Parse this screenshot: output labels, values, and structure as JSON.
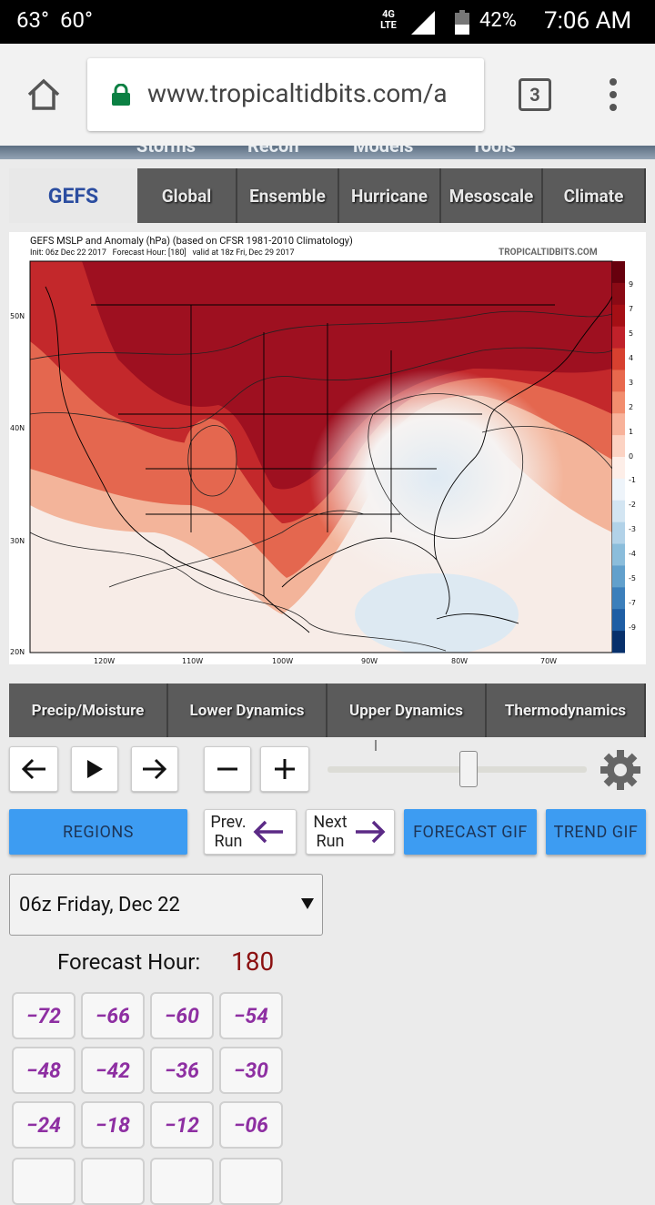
{
  "status_bar": {
    "temps": [
      "63°",
      "60°"
    ],
    "network": "4G LTE",
    "battery": "42%",
    "time": "7:06 AM"
  },
  "browser": {
    "url": "www.tropicaltidbits.com/a",
    "tab_count": "3"
  },
  "site_nav": [
    "Storms",
    "Recon",
    "Models",
    "Tools"
  ],
  "model_tabs": {
    "active": "GEFS",
    "tabs": [
      "Global",
      "Ensemble",
      "Hurricane",
      "Mesoscale",
      "Climate"
    ]
  },
  "map": {
    "title": "GEFS MSLP and Anomaly (hPa) (based on CFSR 1981-2010 Climatology)",
    "subtitle": "Init: 06z Dec 22 2017   Forecast Hour: [180]   valid at 18z Fri, Dec 29 2017",
    "watermark": "TROPICALTIDBITS.COM",
    "lat_labels": [
      "50N",
      "40N",
      "30N",
      "20N"
    ],
    "lon_labels": [
      "120W",
      "110W",
      "100W",
      "90W",
      "80W",
      "70W"
    ],
    "colorbar_labels": [
      "9",
      "7",
      "5",
      "4",
      "3",
      "2",
      "1",
      "0",
      "-1",
      "-2",
      "-3",
      "-4",
      "-5",
      "-7",
      "-9"
    ]
  },
  "category_tabs": [
    "Precip/Moisture",
    "Lower Dynamics",
    "Upper Dynamics",
    "Thermodynamics"
  ],
  "buttons": {
    "regions": "REGIONS",
    "prev_run": "Prev. Run",
    "next_run": "Next Run",
    "forecast_gif": "FORECAST GIF",
    "trend_gif": "TREND GIF"
  },
  "run_select": "06z Friday, Dec 22",
  "forecast_hour": {
    "label": "Forecast Hour:",
    "value": "180"
  },
  "hour_buttons": [
    "−72",
    "−66",
    "−60",
    "−54",
    "−48",
    "−42",
    "−36",
    "−30",
    "−24",
    "−18",
    "−12",
    "−06"
  ]
}
